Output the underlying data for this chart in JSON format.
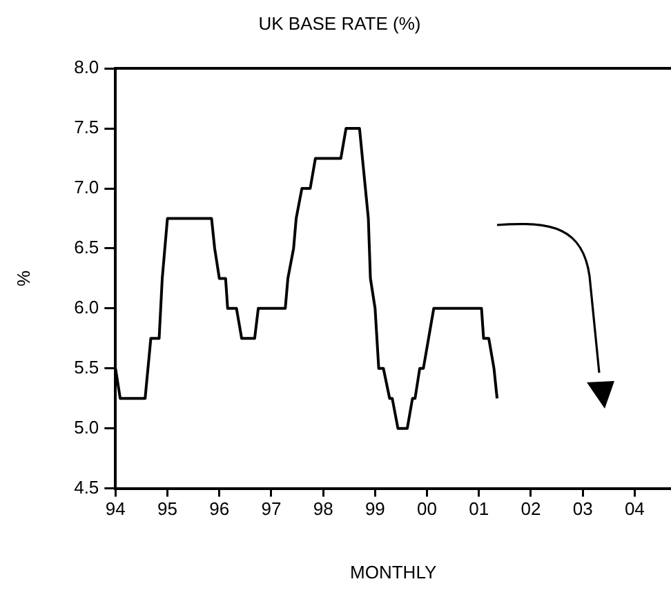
{
  "chart_data": {
    "type": "line",
    "title": "UK BASE RATE (%)",
    "xlabel": "MONTHLY",
    "ylabel": "%",
    "x": [
      1994.0,
      1994.09,
      1994.57,
      1994.68,
      1994.84,
      1994.9,
      1995.0,
      1995.85,
      1995.91,
      1996.0,
      1996.12,
      1996.16,
      1996.33,
      1996.43,
      1996.68,
      1996.75,
      1997.27,
      1997.32,
      1997.43,
      1997.48,
      1997.59,
      1997.75,
      1997.85,
      1998.34,
      1998.44,
      1998.7,
      1998.87,
      1998.91,
      1999.0,
      1999.07,
      1999.16,
      1999.28,
      1999.33,
      1999.44,
      1999.62,
      1999.72,
      1999.77,
      1999.86,
      1999.93,
      2000.13,
      2001.05,
      2001.09,
      2001.19,
      2001.29,
      2001.35
    ],
    "series": [
      {
        "color": "#000000",
        "values": [
          5.5,
          5.25,
          5.25,
          5.75,
          5.75,
          6.25,
          6.75,
          6.75,
          6.5,
          6.25,
          6.25,
          6.0,
          6.0,
          5.75,
          5.75,
          6.0,
          6.0,
          6.25,
          6.5,
          6.75,
          7.0,
          7.0,
          7.25,
          7.25,
          7.5,
          7.5,
          6.75,
          6.25,
          6.0,
          5.5,
          5.5,
          5.25,
          5.25,
          5.0,
          5.0,
          5.25,
          5.25,
          5.5,
          5.5,
          6.0,
          6.0,
          5.75,
          5.75,
          5.5,
          5.25
        ]
      }
    ],
    "xlim": [
      1994,
      2004.7
    ],
    "xticks": [
      {
        "value": 1994,
        "label": "94"
      },
      {
        "value": 1995,
        "label": "95"
      },
      {
        "value": 1996,
        "label": "96"
      },
      {
        "value": 1997,
        "label": "97"
      },
      {
        "value": 1998,
        "label": "98"
      },
      {
        "value": 1999,
        "label": "99"
      },
      {
        "value": 2000,
        "label": "00"
      },
      {
        "value": 2001,
        "label": "01"
      },
      {
        "value": 2002,
        "label": "02"
      },
      {
        "value": 2003,
        "label": "03"
      },
      {
        "value": 2004,
        "label": "04"
      }
    ],
    "ylim": [
      4.5,
      8.0
    ],
    "yticks": [
      {
        "value": 4.5,
        "label": "4.5"
      },
      {
        "value": 5.0,
        "label": "5.0"
      },
      {
        "value": 5.5,
        "label": "5.5"
      },
      {
        "value": 6.0,
        "label": "6.0"
      },
      {
        "value": 6.5,
        "label": "6.5"
      },
      {
        "value": 7.0,
        "label": "7.0"
      },
      {
        "value": 7.5,
        "label": "7.5"
      },
      {
        "value": 8.0,
        "label": "8.0"
      }
    ],
    "grid": false,
    "legend": false,
    "marker": "none",
    "line_style": "solid"
  }
}
